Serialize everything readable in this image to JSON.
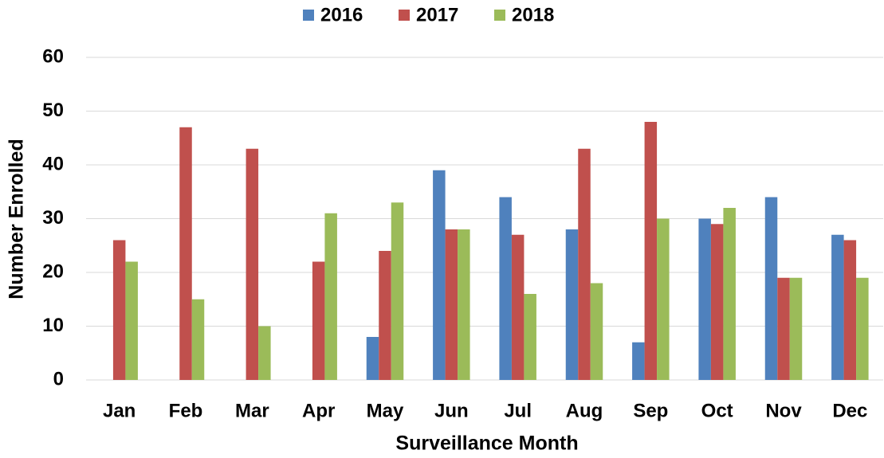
{
  "chart_data": {
    "type": "bar",
    "x_label": "Surveillance Month",
    "y_label": "Number Enrolled",
    "categories": [
      "Jan",
      "Feb",
      "Mar",
      "Apr",
      "May",
      "Jun",
      "Jul",
      "Aug",
      "Sep",
      "Oct",
      "Nov",
      "Dec"
    ],
    "series": [
      {
        "name": "2016",
        "color": "#4f81bd",
        "values": [
          null,
          null,
          null,
          null,
          8,
          39,
          34,
          28,
          7,
          30,
          34,
          27
        ]
      },
      {
        "name": "2017",
        "color": "#c0504d",
        "values": [
          26,
          47,
          43,
          22,
          24,
          28,
          27,
          43,
          48,
          29,
          19,
          26
        ]
      },
      {
        "name": "2018",
        "color": "#9bbb59",
        "values": [
          22,
          15,
          10,
          31,
          33,
          28,
          16,
          18,
          30,
          32,
          19,
          19
        ]
      }
    ],
    "ylim": [
      0,
      60
    ],
    "yticks": [
      0,
      10,
      20,
      30,
      40,
      50,
      60
    ],
    "grid": true,
    "legend": "top"
  }
}
